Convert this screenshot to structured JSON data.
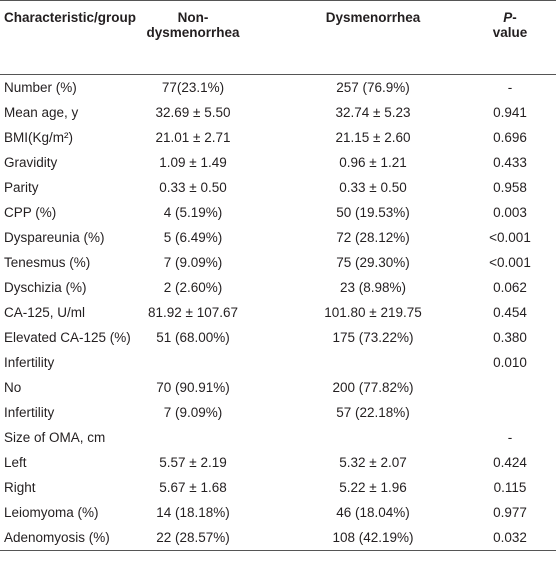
{
  "table": {
    "header": [
      "Characteristic/group",
      "Non-dysmenorrhea",
      "Dysmenorrhea",
      "P-value"
    ],
    "rows": [
      [
        "Number (%)",
        "77(23.1%)",
        "257 (76.9%)",
        "-"
      ],
      [
        "Mean age, y",
        "32.69 ± 5.50",
        "32.74 ± 5.23",
        "0.941"
      ],
      [
        "BMI(Kg/m²)",
        "21.01 ± 2.71",
        "21.15 ± 2.60",
        "0.696"
      ],
      [
        "Gravidity",
        "1.09 ± 1.49",
        "0.96 ± 1.21",
        "0.433"
      ],
      [
        "Parity",
        "0.33 ± 0.50",
        "0.33 ± 0.50",
        "0.958"
      ],
      [
        "CPP (%)",
        "4 (5.19%)",
        "50 (19.53%)",
        "0.003"
      ],
      [
        "Dyspareunia (%)",
        "5 (6.49%)",
        "72 (28.12%)",
        "<0.001"
      ],
      [
        "Tenesmus (%)",
        "7 (9.09%)",
        "75 (29.30%)",
        "<0.001"
      ],
      [
        "Dyschizia (%)",
        "2 (2.60%)",
        "23 (8.98%)",
        "0.062"
      ],
      [
        "CA-125, U/ml",
        "81.92 ± 107.67",
        "101.80 ± 219.75",
        "0.454"
      ],
      [
        "Elevated CA-125 (%)",
        "51 (68.00%)",
        "175 (73.22%)",
        "0.380"
      ],
      [
        "Infertility",
        null,
        null,
        "0.010"
      ],
      [
        "No",
        "70 (90.91%)",
        "200 (77.82%)",
        null
      ],
      [
        "Infertility",
        "7 (9.09%)",
        "57 (22.18%)",
        null
      ],
      [
        "Size of OMA, cm",
        null,
        null,
        "-"
      ],
      [
        "Left",
        "5.57 ± 2.19",
        "5.32 ± 2.07",
        "0.424"
      ],
      [
        "Right",
        "5.67 ± 1.68",
        "5.22 ± 1.96",
        "0.115"
      ],
      [
        "Leiomyoma (%)",
        "14 (18.18%)",
        "46 (18.04%)",
        "0.977"
      ],
      [
        "Adenomyosis (%)",
        "22 (28.57%)",
        "108 (42.19%)",
        "0.032"
      ]
    ]
  }
}
